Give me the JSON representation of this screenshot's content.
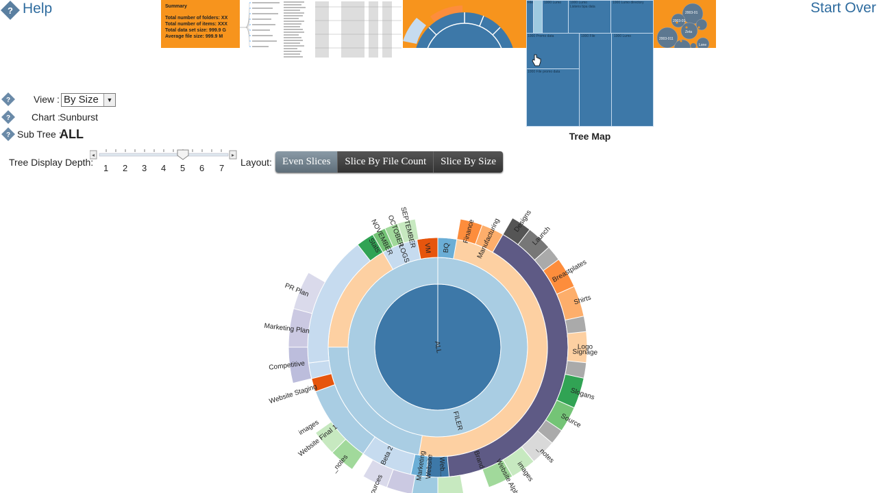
{
  "header": {
    "help_label": "Help",
    "start_over_label": "Start Over"
  },
  "thumbnails": {
    "summary": {
      "title": "Summary",
      "lines": [
        "Total number of folders: XX",
        "Total number of items: XXX",
        "Total data set size: 999.9 G",
        "Average file size: 999.9 M"
      ]
    },
    "sunburst_thumb": "sunburst-thumbnail",
    "treemap_thumb": "treemap-thumbnail",
    "bubble_thumb": {
      "labels": [
        "2003-01",
        "2003-01",
        "Zeta",
        "Lone",
        "2010-11",
        "2003-011"
      ]
    },
    "treemap_caption": "Tree Map"
  },
  "controls": {
    "view_label": "View :",
    "view_value": "By Size",
    "chart_label": "Chart :",
    "chart_value": "Sunburst",
    "subtree_label": "Sub Tree :",
    "subtree_value": "ALL",
    "depth_label": "Tree Display Depth:",
    "depth_ticks": [
      "1",
      "2",
      "3",
      "4",
      "5",
      "6",
      "7"
    ],
    "depth_value": 5,
    "layout_label": "Layout:",
    "layout_buttons": [
      "Even Slices",
      "Slice By File Count",
      "Slice By Size"
    ],
    "layout_active": 0
  },
  "colors": {
    "orange": "#f7941d",
    "blue_dark": "#3d78a8",
    "blue_light": "#a9cde3",
    "peach": "#fdd0a2",
    "purple": "#5e5a85",
    "dark_button": "#3a3a3a"
  },
  "sunburst": {
    "root": "ALL",
    "level1": [
      {
        "label": "FILER"
      }
    ],
    "level2": [
      {
        "label": "VM",
        "color": "#e6550d"
      },
      {
        "label": "BQ",
        "color": "#6baed6"
      },
      {
        "label": "",
        "color": "#fdd0a2"
      },
      {
        "label": "Marketing",
        "color": "#9ecae1"
      },
      {
        "label": "",
        "color": "#c6dbef"
      },
      {
        "label": "LOGS",
        "color": "#c6dbef"
      }
    ],
    "level3": [
      {
        "label": "Finance",
        "color": "#fd8d3c"
      },
      {
        "label": "Manufacturing",
        "color": "#fdae6b"
      },
      {
        "label": "",
        "color": "#5e5a85"
      },
      {
        "label": "Brand",
        "color": "#5e5a85"
      },
      {
        "label": "Web...",
        "color": "#6b6ecf"
      },
      {
        "label": "Website",
        "color": "#9ecae1"
      },
      {
        "label": "Beta 2",
        "color": "#c6dbef"
      },
      {
        "label": "Website Staging",
        "color": "#e6550d"
      },
      {
        "label": "",
        "color": "#c6dbef"
      },
      {
        "label": "Stats",
        "color": "#31a354"
      },
      {
        "label": "NOVEMBER",
        "color": "#74c476"
      },
      {
        "label": "OCTOBER",
        "color": "#a1d99b"
      },
      {
        "label": "SEPTEMBER",
        "color": "#c7e9c0"
      }
    ],
    "outer_labels": [
      "Designs",
      "Launch",
      "Breastplates",
      "Shirts",
      "Logo",
      "Signage",
      "Slogans",
      "Source",
      "_notes",
      "Website Alpha 1",
      "images",
      "Website Final 1",
      "_notes",
      "images",
      "sources",
      "PR Plan",
      "Marketing Plan",
      "Competitive",
      "Website Staging"
    ]
  }
}
